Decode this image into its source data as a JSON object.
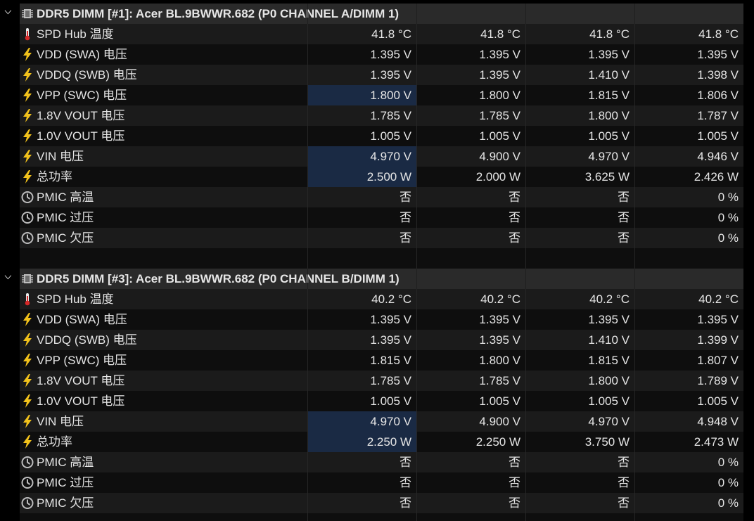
{
  "groups": [
    {
      "title": "DDR5 DIMM [#1]: Acer BL.9BWWR.682 (P0 CHANNEL A/DIMM 1)",
      "rows": [
        {
          "label": "SPD Hub 温度",
          "values": [
            "41.8 °C",
            "41.8 °C",
            "41.8 °C",
            "41.8 °C"
          ]
        },
        {
          "label": "VDD (SWA) 电压",
          "values": [
            "1.395 V",
            "1.395 V",
            "1.395 V",
            "1.395 V"
          ]
        },
        {
          "label": "VDDQ (SWB) 电压",
          "values": [
            "1.395 V",
            "1.395 V",
            "1.410 V",
            "1.398 V"
          ]
        },
        {
          "label": "VPP (SWC) 电压",
          "values": [
            "1.800 V",
            "1.800 V",
            "1.815 V",
            "1.806 V"
          ]
        },
        {
          "label": "1.8V VOUT 电压",
          "values": [
            "1.785 V",
            "1.785 V",
            "1.800 V",
            "1.787 V"
          ]
        },
        {
          "label": "1.0V VOUT 电压",
          "values": [
            "1.005 V",
            "1.005 V",
            "1.005 V",
            "1.005 V"
          ]
        },
        {
          "label": "VIN 电压",
          "values": [
            "4.970 V",
            "4.900 V",
            "4.970 V",
            "4.946 V"
          ]
        },
        {
          "label": "总功率",
          "values": [
            "2.500 W",
            "2.000 W",
            "3.625 W",
            "2.426 W"
          ]
        },
        {
          "label": "PMIC 高温",
          "values": [
            "否",
            "否",
            "否",
            "0 %"
          ]
        },
        {
          "label": "PMIC 过压",
          "values": [
            "否",
            "否",
            "否",
            "0 %"
          ]
        },
        {
          "label": "PMIC 欠压",
          "values": [
            "否",
            "否",
            "否",
            "0 %"
          ]
        }
      ]
    },
    {
      "title": "DDR5 DIMM [#3]: Acer BL.9BWWR.682 (P0 CHANNEL B/DIMM 1)",
      "rows": [
        {
          "label": "SPD Hub 温度",
          "values": [
            "40.2 °C",
            "40.2 °C",
            "40.2 °C",
            "40.2 °C"
          ]
        },
        {
          "label": "VDD (SWA) 电压",
          "values": [
            "1.395 V",
            "1.395 V",
            "1.395 V",
            "1.395 V"
          ]
        },
        {
          "label": "VDDQ (SWB) 电压",
          "values": [
            "1.395 V",
            "1.395 V",
            "1.410 V",
            "1.399 V"
          ]
        },
        {
          "label": "VPP (SWC) 电压",
          "values": [
            "1.815 V",
            "1.800 V",
            "1.815 V",
            "1.807 V"
          ]
        },
        {
          "label": "1.8V VOUT 电压",
          "values": [
            "1.785 V",
            "1.785 V",
            "1.800 V",
            "1.789 V"
          ]
        },
        {
          "label": "1.0V VOUT 电压",
          "values": [
            "1.005 V",
            "1.005 V",
            "1.005 V",
            "1.005 V"
          ]
        },
        {
          "label": "VIN 电压",
          "values": [
            "4.970 V",
            "4.900 V",
            "4.970 V",
            "4.948 V"
          ]
        },
        {
          "label": "总功率",
          "values": [
            "2.250 W",
            "2.250 W",
            "3.750 W",
            "2.473 W"
          ]
        },
        {
          "label": "PMIC 高温",
          "values": [
            "否",
            "否",
            "否",
            "0 %"
          ]
        },
        {
          "label": "PMIC 过压",
          "values": [
            "否",
            "否",
            "否",
            "0 %"
          ]
        },
        {
          "label": "PMIC 欠压",
          "values": [
            "否",
            "否",
            "否",
            "0 %"
          ]
        }
      ]
    }
  ]
}
